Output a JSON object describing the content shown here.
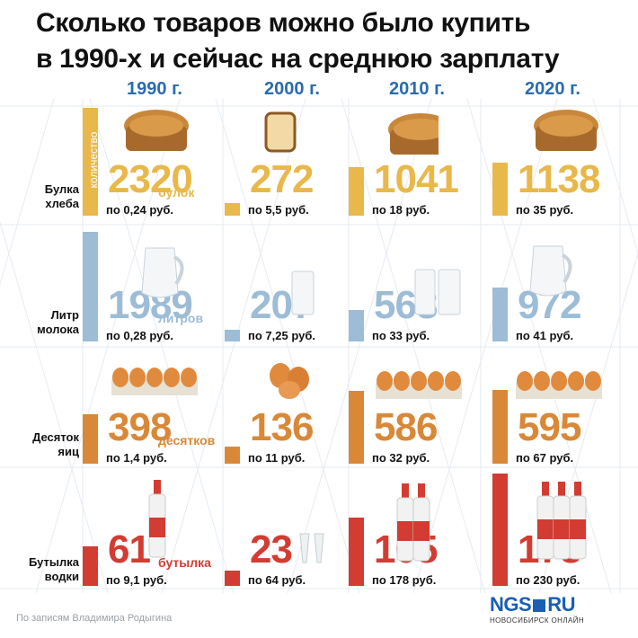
{
  "title_line1": "Сколько товаров можно было купить",
  "title_line2": "в 1990-х и сейчас на среднюю зарплату",
  "source": "По записям Владимира Родыгина",
  "logo": {
    "main_left": "NGS",
    "main_right": "RU",
    "sub": "НОВОСИБИРСК ОНЛАЙН"
  },
  "quantity_label": "количество",
  "colors": {
    "bread": "#e9b84a",
    "milk": "#9dbcd6",
    "eggs": "#d98838",
    "vodka": "#d23c32",
    "year": "#2a6bb0"
  },
  "chart_data": {
    "type": "bar",
    "title": "Сколько товаров можно было купить в 1990-х и сейчас на среднюю зарплату",
    "categories": [
      "1990 г.",
      "2000 г.",
      "2010 г.",
      "2020 г."
    ],
    "series": [
      {
        "name": "Булка хлеба",
        "unit": "булок",
        "values": [
          2320,
          272,
          1041,
          1138
        ],
        "prices": [
          "по 0,24 руб.",
          "по 5,5 руб.",
          "по 18 руб.",
          "по 35 руб."
        ]
      },
      {
        "name": "Литр молока",
        "unit": "литров",
        "values": [
          1989,
          207,
          568,
          972
        ],
        "prices": [
          "по 0,28 руб.",
          "по 7,25 руб.",
          "по 33 руб.",
          "по 41 руб."
        ]
      },
      {
        "name": "Десяток яиц",
        "unit": "десятков",
        "values": [
          398,
          136,
          586,
          595
        ],
        "prices": [
          "по 1,4 руб.",
          "по 11 руб.",
          "по 32 руб.",
          "по 67 руб."
        ]
      },
      {
        "name": "Бутылка водки",
        "unit": "бутылка",
        "values": [
          61,
          23,
          105,
          173
        ],
        "prices": [
          "по 9,1 руб.",
          "по 64 руб.",
          "по 178 руб.",
          "по 230 руб."
        ]
      }
    ],
    "row_labels": [
      [
        "Булка",
        "хлеба"
      ],
      [
        "Литр",
        "молока"
      ],
      [
        "Десяток",
        "яиц"
      ],
      [
        "Бутылка",
        "водки"
      ]
    ]
  }
}
